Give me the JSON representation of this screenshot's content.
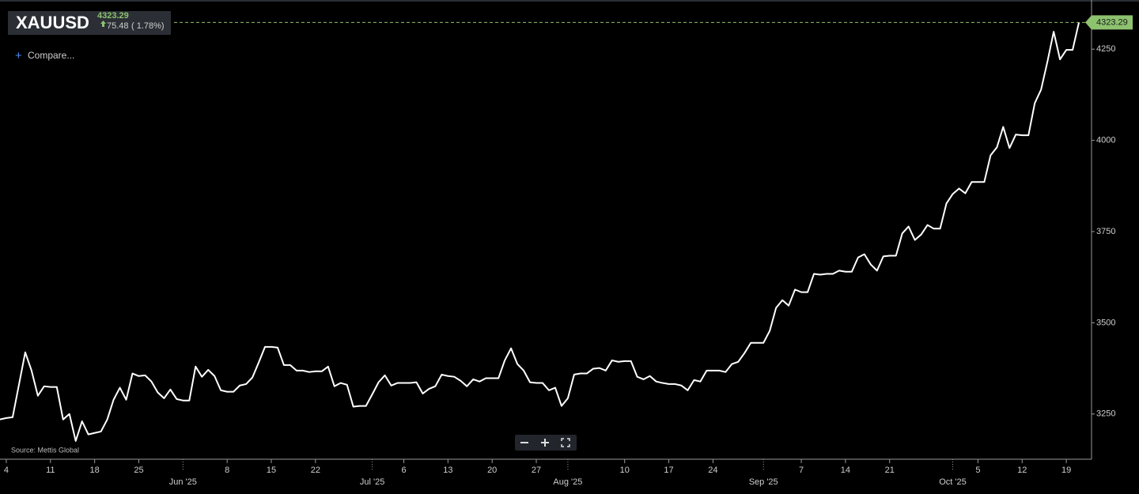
{
  "header": {
    "change": "75.48",
    "change_percent": "( 1.78%)",
    "compare": "Compare...",
    "source": "Source: Mettis Global"
  },
  "chart_data": {
    "type": "line",
    "title": "XAUUSD",
    "xlim": [
      "2025-05-03",
      "2025-10-23"
    ],
    "ylim": [
      3126,
      4374
    ],
    "yticks": [
      3250,
      3500,
      3750,
      4000,
      4250
    ],
    "xticks": [
      {
        "value": "2025-05-04",
        "label": "4"
      },
      {
        "value": "2025-05-11",
        "label": "11"
      },
      {
        "value": "2025-05-18",
        "label": "18"
      },
      {
        "value": "2025-05-25",
        "label": "25"
      },
      {
        "value": "2025-06-01",
        "label": "Jun '25"
      },
      {
        "value": "2025-06-08",
        "label": "8"
      },
      {
        "value": "2025-06-15",
        "label": "15"
      },
      {
        "value": "2025-06-22",
        "label": "22"
      },
      {
        "value": "2025-07-01",
        "label": "Jul '25"
      },
      {
        "value": "2025-07-06",
        "label": "6"
      },
      {
        "value": "2025-07-13",
        "label": "13"
      },
      {
        "value": "2025-07-20",
        "label": "20"
      },
      {
        "value": "2025-07-27",
        "label": "27"
      },
      {
        "value": "2025-08-01",
        "label": "Aug '25"
      },
      {
        "value": "2025-08-10",
        "label": "10"
      },
      {
        "value": "2025-08-17",
        "label": "17"
      },
      {
        "value": "2025-08-24",
        "label": "24"
      },
      {
        "value": "2025-09-01",
        "label": "Sep '25"
      },
      {
        "value": "2025-09-07",
        "label": "7"
      },
      {
        "value": "2025-09-14",
        "label": "14"
      },
      {
        "value": "2025-09-21",
        "label": "21"
      },
      {
        "value": "2025-10-01",
        "label": "Oct '25"
      },
      {
        "value": "2025-10-05",
        "label": "5"
      },
      {
        "value": "2025-10-12",
        "label": "12"
      },
      {
        "value": "2025-10-19",
        "label": "19"
      }
    ],
    "series": [
      {
        "name": "XAUUSD",
        "color": "#ffffff",
        "marker_color": "#8dc26f",
        "x": [
          "2025-05-03",
          "2025-05-04",
          "2025-05-05",
          "2025-05-06",
          "2025-05-07",
          "2025-05-08",
          "2025-05-09",
          "2025-05-10",
          "2025-05-11",
          "2025-05-12",
          "2025-05-13",
          "2025-05-14",
          "2025-05-15",
          "2025-05-16",
          "2025-05-17",
          "2025-05-18",
          "2025-05-19",
          "2025-05-20",
          "2025-05-21",
          "2025-05-22",
          "2025-05-23",
          "2025-05-24",
          "2025-05-25",
          "2025-05-26",
          "2025-05-27",
          "2025-05-28",
          "2025-05-29",
          "2025-05-30",
          "2025-05-31",
          "2025-06-01",
          "2025-06-02",
          "2025-06-03",
          "2025-06-04",
          "2025-06-05",
          "2025-06-06",
          "2025-06-07",
          "2025-06-08",
          "2025-06-09",
          "2025-06-10",
          "2025-06-11",
          "2025-06-12",
          "2025-06-13",
          "2025-06-14",
          "2025-06-15",
          "2025-06-16",
          "2025-06-17",
          "2025-06-18",
          "2025-06-19",
          "2025-06-20",
          "2025-06-21",
          "2025-06-22",
          "2025-06-23",
          "2025-06-24",
          "2025-06-25",
          "2025-06-26",
          "2025-06-27",
          "2025-06-28",
          "2025-06-29",
          "2025-06-30",
          "2025-07-01",
          "2025-07-02",
          "2025-07-03",
          "2025-07-04",
          "2025-07-05",
          "2025-07-06",
          "2025-07-07",
          "2025-07-08",
          "2025-07-09",
          "2025-07-10",
          "2025-07-11",
          "2025-07-12",
          "2025-07-13",
          "2025-07-14",
          "2025-07-15",
          "2025-07-16",
          "2025-07-17",
          "2025-07-18",
          "2025-07-19",
          "2025-07-20",
          "2025-07-21",
          "2025-07-22",
          "2025-07-23",
          "2025-07-24",
          "2025-07-25",
          "2025-07-26",
          "2025-07-27",
          "2025-07-28",
          "2025-07-29",
          "2025-07-30",
          "2025-07-31",
          "2025-08-01",
          "2025-08-02",
          "2025-08-03",
          "2025-08-04",
          "2025-08-05",
          "2025-08-06",
          "2025-08-07",
          "2025-08-08",
          "2025-08-09",
          "2025-08-10",
          "2025-08-11",
          "2025-08-12",
          "2025-08-13",
          "2025-08-14",
          "2025-08-15",
          "2025-08-16",
          "2025-08-17",
          "2025-08-18",
          "2025-08-19",
          "2025-08-20",
          "2025-08-21",
          "2025-08-22",
          "2025-08-23",
          "2025-08-24",
          "2025-08-25",
          "2025-08-26",
          "2025-08-27",
          "2025-08-28",
          "2025-08-29",
          "2025-08-30",
          "2025-08-31",
          "2025-09-01",
          "2025-09-02",
          "2025-09-03",
          "2025-09-04",
          "2025-09-05",
          "2025-09-06",
          "2025-09-07",
          "2025-09-08",
          "2025-09-09",
          "2025-09-10",
          "2025-09-11",
          "2025-09-12",
          "2025-09-13",
          "2025-09-14",
          "2025-09-15",
          "2025-09-16",
          "2025-09-17",
          "2025-09-18",
          "2025-09-19",
          "2025-09-20",
          "2025-09-21",
          "2025-09-22",
          "2025-09-23",
          "2025-09-24",
          "2025-09-25",
          "2025-09-26",
          "2025-09-27",
          "2025-09-28",
          "2025-09-29",
          "2025-09-30",
          "2025-10-01",
          "2025-10-02",
          "2025-10-03",
          "2025-10-04",
          "2025-10-05",
          "2025-10-06",
          "2025-10-07",
          "2025-10-08",
          "2025-10-09",
          "2025-10-10",
          "2025-10-11",
          "2025-10-12",
          "2025-10-13",
          "2025-10-14",
          "2025-10-15",
          "2025-10-16",
          "2025-10-17",
          "2025-10-18",
          "2025-10-19",
          "2025-10-20",
          "2025-10-21"
        ],
        "values": [
          3235,
          3239,
          3241,
          3330,
          3419,
          3369,
          3300,
          3326,
          3324,
          3324,
          3235,
          3250,
          3176,
          3230,
          3194,
          3198,
          3202,
          3235,
          3289,
          3322,
          3289,
          3361,
          3354,
          3356,
          3339,
          3309,
          3293,
          3317,
          3291,
          3287,
          3287,
          3380,
          3352,
          3371,
          3354,
          3315,
          3311,
          3311,
          3328,
          3332,
          3350,
          3391,
          3434,
          3434,
          3432,
          3384,
          3384,
          3369,
          3369,
          3365,
          3367,
          3367,
          3380,
          3326,
          3335,
          3330,
          3270,
          3272,
          3272,
          3304,
          3337,
          3356,
          3328,
          3335,
          3335,
          3335,
          3337,
          3306,
          3319,
          3326,
          3358,
          3354,
          3352,
          3341,
          3326,
          3345,
          3339,
          3348,
          3348,
          3348,
          3397,
          3430,
          3387,
          3369,
          3337,
          3335,
          3335,
          3315,
          3322,
          3272,
          3293,
          3358,
          3361,
          3361,
          3374,
          3376,
          3369,
          3397,
          3393,
          3395,
          3395,
          3352,
          3345,
          3354,
          3339,
          3335,
          3332,
          3332,
          3328,
          3315,
          3343,
          3339,
          3369,
          3369,
          3369,
          3365,
          3387,
          3393,
          3417,
          3445,
          3445,
          3445,
          3478,
          3541,
          3562,
          3547,
          3591,
          3584,
          3584,
          3634,
          3632,
          3634,
          3634,
          3643,
          3640,
          3640,
          3679,
          3688,
          3660,
          3643,
          3682,
          3684,
          3684,
          3745,
          3764,
          3727,
          3742,
          3768,
          3758,
          3758,
          3827,
          3853,
          3868,
          3855,
          3886,
          3886,
          3886,
          3959,
          3981,
          4037,
          3979,
          4016,
          4014,
          4014,
          4102,
          4139,
          4215,
          4298,
          4222,
          4248,
          4248,
          4323.29
        ]
      }
    ]
  }
}
